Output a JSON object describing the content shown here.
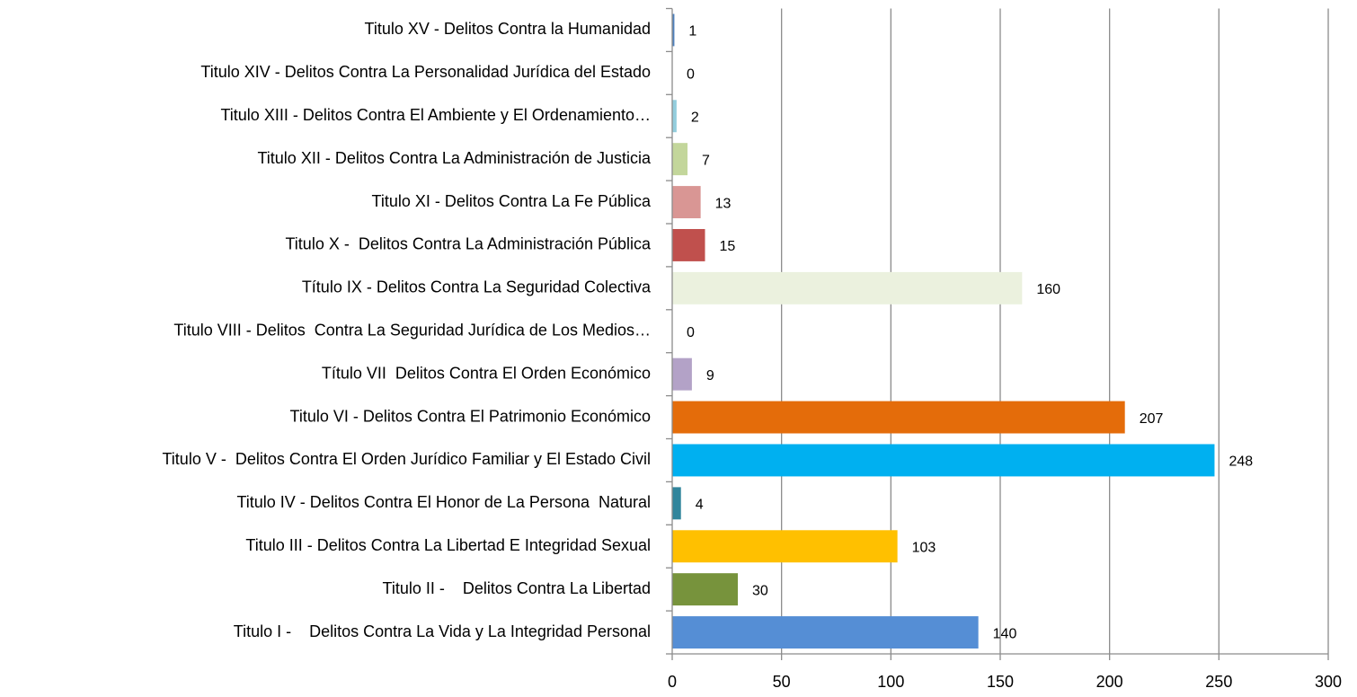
{
  "chart_data": {
    "type": "barh",
    "categories": [
      "Titulo I -    Delitos Contra La Vida y La Integridad Personal",
      "Titulo II -    Delitos Contra La Libertad",
      "Titulo III - Delitos Contra La Libertad E Integridad Sexual",
      "Titulo IV - Delitos Contra El Honor de La Persona  Natural",
      "Titulo V -  Delitos Contra El Orden Jurídico Familiar y El Estado Civil",
      "Titulo VI - Delitos Contra El Patrimonio Económico",
      "Título VII  Delitos Contra El Orden Económico",
      "Titulo VIII - Delitos  Contra La Seguridad Jurídica de Los Medios…",
      "Título IX - Delitos Contra La Seguridad Colectiva",
      "Titulo X -  Delitos Contra La Administración Pública",
      "Titulo XI - Delitos Contra La Fe Pública",
      "Titulo XII - Delitos Contra La Administración de Justicia",
      "Titulo XIII - Delitos Contra El Ambiente y El Ordenamiento…",
      "Titulo XIV - Delitos Contra La Personalidad Jurídica del Estado",
      "Titulo XV - Delitos Contra la Humanidad"
    ],
    "values": [
      140,
      30,
      103,
      4,
      248,
      207,
      9,
      0,
      160,
      15,
      13,
      7,
      2,
      0,
      1
    ],
    "colors": [
      "#558ed5",
      "#77933c",
      "#ffc000",
      "#31859c",
      "#00b0f0",
      "#e46c0a",
      "#b3a2c7",
      "#8064a2",
      "#ebf1de",
      "#c0504d",
      "#d99694",
      "#c3d69b",
      "#93cddd",
      "#f79646",
      "#4f81bd"
    ],
    "xlim": [
      0,
      300
    ],
    "xticks": [
      0,
      50,
      100,
      150,
      200,
      250,
      300
    ],
    "grid": true
  }
}
